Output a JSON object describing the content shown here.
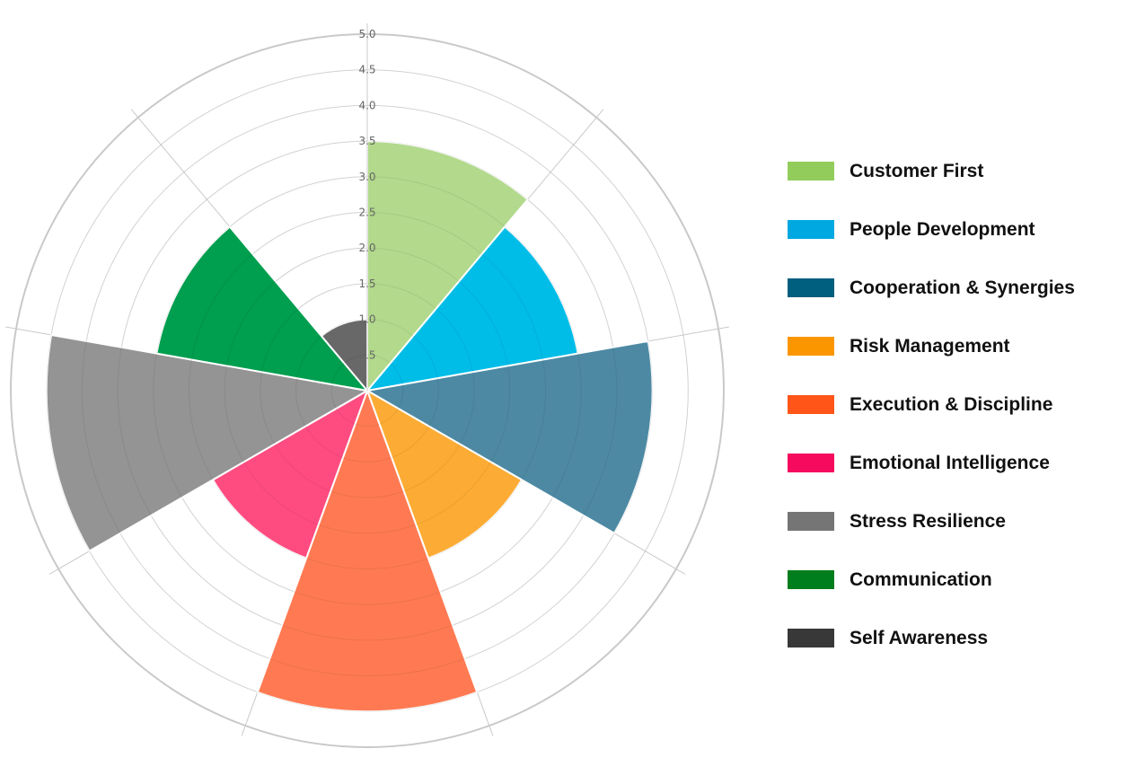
{
  "chart_data": {
    "type": "polar-area",
    "title": "",
    "r_range": [
      0,
      5
    ],
    "r_ticks": [
      "0.5",
      "1.0",
      "1.5",
      "2.0",
      "2.5",
      "3.0",
      "3.5",
      "4.0",
      "4.5",
      "5.0"
    ],
    "grid": true,
    "legend_position": "right",
    "series": [
      {
        "name": "Customer First",
        "value": 3.5,
        "color": "#92cd5c",
        "fill": "#b2d98c"
      },
      {
        "name": "People Development",
        "value": 3.0,
        "color": "#00a8e1",
        "fill": "#00bde8"
      },
      {
        "name": "Cooperation & Synergies",
        "value": 4.0,
        "color": "#005e7e",
        "fill": "#4d89a3"
      },
      {
        "name": "Risk Management",
        "value": 2.5,
        "color": "#fb9600",
        "fill": "#fcac34"
      },
      {
        "name": "Execution & Discipline",
        "value": 4.5,
        "color": "#ff5519",
        "fill": "#ff7a52"
      },
      {
        "name": "Emotional Intelligence",
        "value": 2.5,
        "color": "#f50a5e",
        "fill": "#ff4c80"
      },
      {
        "name": "Stress Resilience",
        "value": 4.5,
        "color": "#757575",
        "fill": "#949494"
      },
      {
        "name": "Communication",
        "value": 3.0,
        "color": "#007d1d",
        "fill": "#009e4f"
      },
      {
        "name": "Self Awareness",
        "value": 1.0,
        "color": "#383838",
        "fill": "#686868"
      }
    ]
  }
}
